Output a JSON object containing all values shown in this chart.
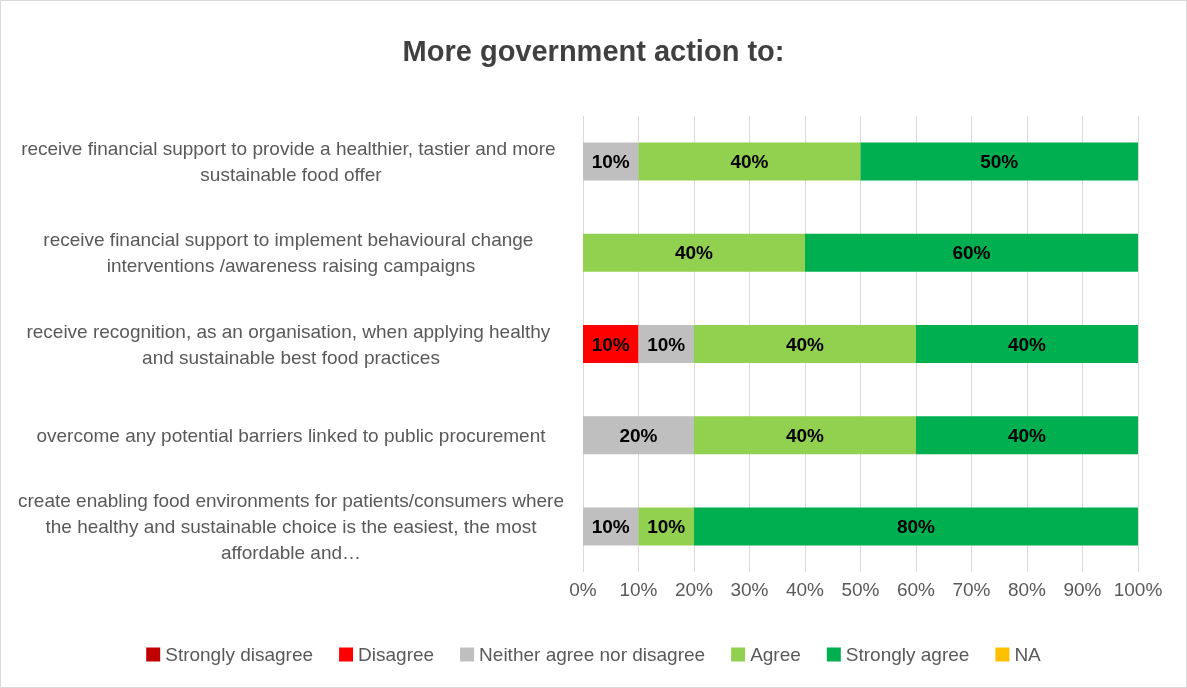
{
  "chart_data": {
    "type": "bar",
    "orientation": "horizontal",
    "stacked": true,
    "title": "More government action to:",
    "categories": [
      "receive financial support to provide a healthier, tastier and more sustainable food offer",
      "receive financial support to implement behavioural change interventions /awareness raising campaigns",
      "receive recognition, as an organisation, when applying healthy and sustainable best food practices",
      "overcome any potential barriers linked to public procurement",
      "create enabling food environments for patients/consumers where the healthy and sustainable choice is the easiest, the most affordable and…"
    ],
    "series": [
      {
        "name": "Strongly disagree",
        "color": "#c00000",
        "values": [
          0,
          0,
          0,
          0,
          0
        ],
        "value_labels": [
          null,
          null,
          null,
          null,
          null
        ]
      },
      {
        "name": "Disagree",
        "color": "#ff0000",
        "values": [
          0,
          0,
          10,
          0,
          0
        ],
        "value_labels": [
          null,
          null,
          "10%",
          null,
          null
        ]
      },
      {
        "name": "Neither agree nor disagree",
        "color": "#bfbfbf",
        "values": [
          10,
          0,
          10,
          20,
          10
        ],
        "value_labels": [
          "10%",
          null,
          "10%",
          "20%",
          "10%"
        ]
      },
      {
        "name": "Agree",
        "color": "#92d050",
        "values": [
          40,
          40,
          40,
          40,
          10
        ],
        "value_labels": [
          "40%",
          "40%",
          "40%",
          "40%",
          "10%"
        ]
      },
      {
        "name": "Strongly agree",
        "color": "#00b050",
        "values": [
          50,
          60,
          40,
          40,
          80
        ],
        "value_labels": [
          "50%",
          "60%",
          "40%",
          "40%",
          "80%"
        ]
      },
      {
        "name": "NA",
        "color": "#ffc000",
        "values": [
          0,
          0,
          0,
          0,
          0
        ],
        "value_labels": [
          null,
          null,
          null,
          null,
          null
        ]
      }
    ],
    "xlim": [
      0,
      100
    ],
    "xticks": [
      {
        "value": 0,
        "label": "0%"
      },
      {
        "value": 10,
        "label": "10%"
      },
      {
        "value": 20,
        "label": "20%"
      },
      {
        "value": 30,
        "label": "30%"
      },
      {
        "value": 40,
        "label": "40%"
      },
      {
        "value": 50,
        "label": "50%"
      },
      {
        "value": 60,
        "label": "60%"
      },
      {
        "value": 70,
        "label": "70%"
      },
      {
        "value": 80,
        "label": "80%"
      },
      {
        "value": 90,
        "label": "90%"
      },
      {
        "value": 100,
        "label": "100%"
      }
    ],
    "grid": "x",
    "legend": "bottom"
  }
}
